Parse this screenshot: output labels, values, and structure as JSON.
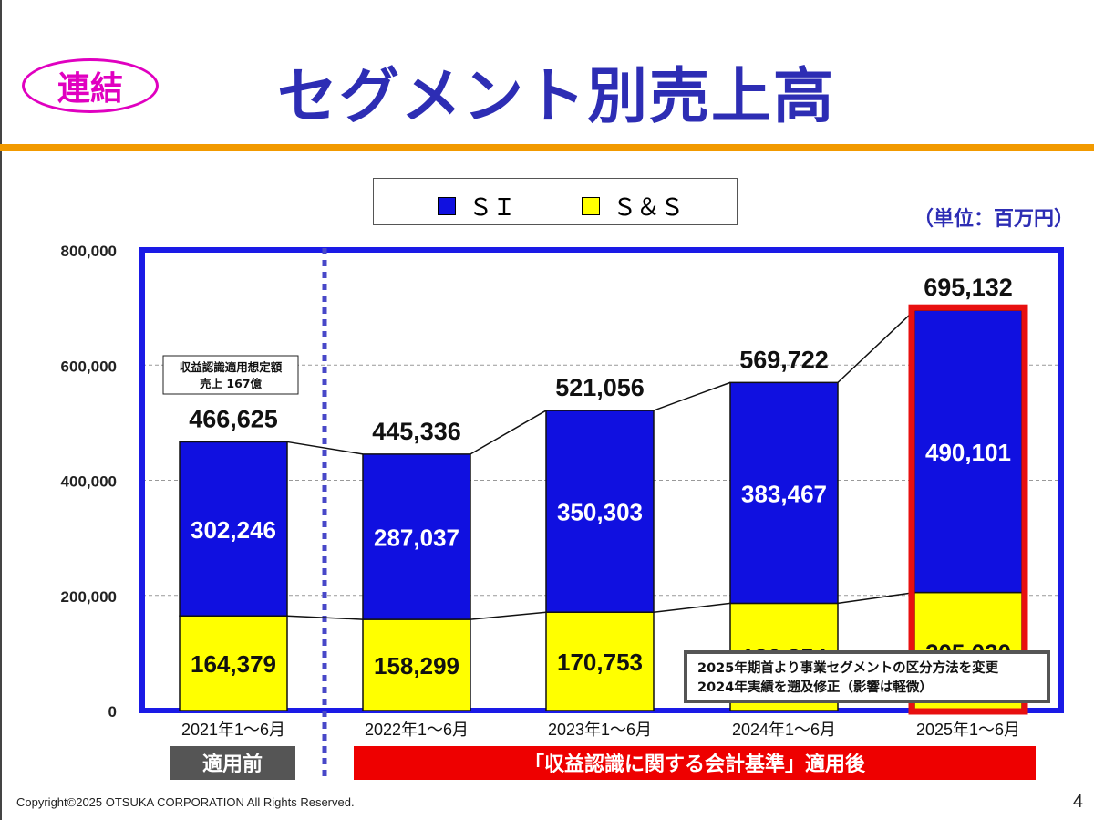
{
  "header": {
    "badge": "連結",
    "title": "セグメント別売上高"
  },
  "unit_label": "（単位：百万円）",
  "legend": [
    {
      "label": "ＳＩ",
      "color": "#1010e0"
    },
    {
      "label": "Ｓ＆Ｓ",
      "color": "#ffff00"
    }
  ],
  "colors": {
    "frame": "#1a1ae6",
    "highlight": "#e81010",
    "pre_label_bg": "#555555",
    "post_label_bg": "#ee0000",
    "divider": "#4848c8"
  },
  "footer": {
    "copyright": "Copyright©2025 OTSUKA CORPORATION All Rights Reserved.",
    "page_number": "4"
  },
  "chart_data": {
    "type": "bar",
    "stacked": true,
    "categories": [
      "2021年1～6月",
      "2022年1～6月",
      "2023年1～6月",
      "2024年1～6月",
      "2025年1～6月"
    ],
    "series": [
      {
        "name": "Ｓ＆Ｓ",
        "values": [
          164379,
          158299,
          170753,
          186254,
          205030
        ],
        "labels": [
          "164,379",
          "158,299",
          "170,753",
          "186,254",
          "205,030"
        ]
      },
      {
        "name": "ＳＩ",
        "values": [
          302246,
          287037,
          350303,
          383467,
          490101
        ],
        "labels": [
          "302,246",
          "287,037",
          "350,303",
          "383,467",
          "490,101"
        ]
      }
    ],
    "totals": [
      466625,
      445336,
      521056,
      569722,
      695132
    ],
    "total_labels": [
      "466,625",
      "445,336",
      "521,056",
      "569,722",
      "695,132"
    ],
    "ylim": [
      0,
      800000
    ],
    "yticks": [
      0,
      200000,
      400000,
      600000,
      800000
    ],
    "ytick_labels": [
      "0",
      "200,000",
      "400,000",
      "600,000",
      "800,000"
    ],
    "grid": true,
    "highlight_index": 4,
    "annotations": {
      "note_2021": [
        "収益認識適用想定額",
        "売上 167億"
      ],
      "note_change": [
        "2025年期首より事業セグメントの区分方法を変更",
        "2024年実績を遡及修正（影響は軽微）"
      ]
    },
    "period_labels": {
      "before": "適用前",
      "after": "「収益認識に関する会計基準」適用後"
    }
  }
}
